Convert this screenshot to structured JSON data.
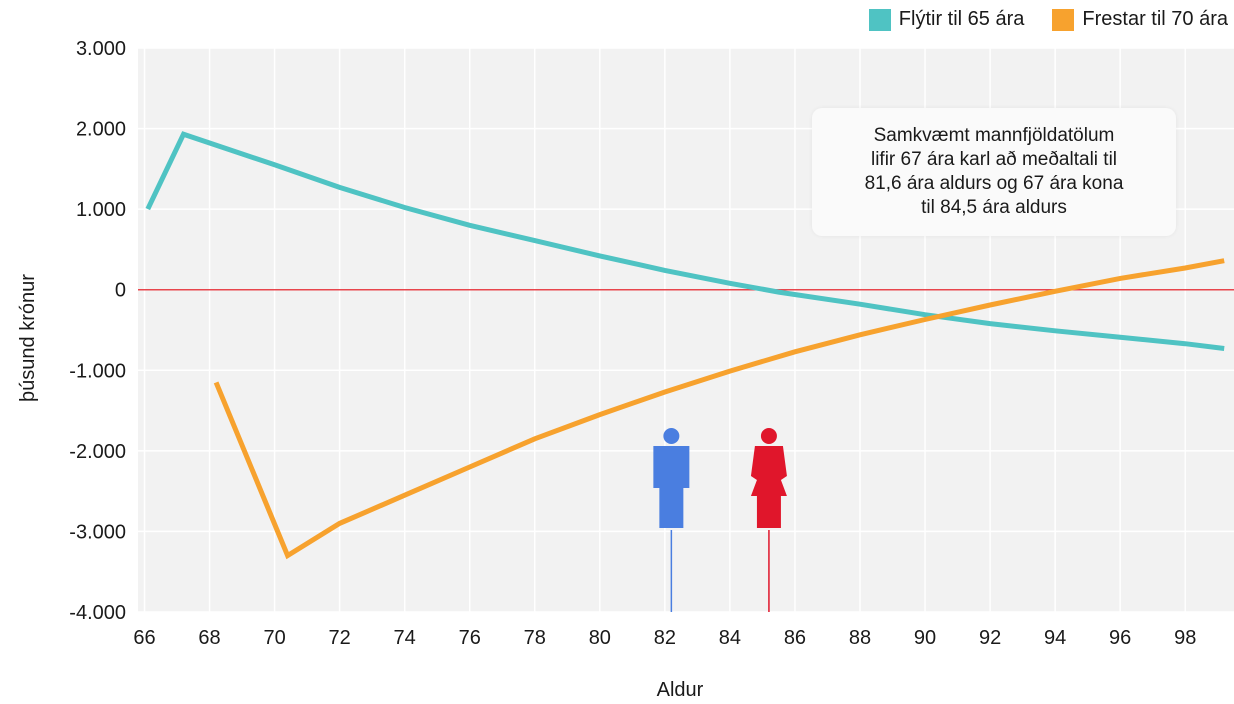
{
  "chart_data": {
    "type": "line",
    "xlabel": "Aldur",
    "ylabel": "þúsund krónur",
    "xlim": [
      65.8,
      99.5
    ],
    "ylim": [
      -4000,
      3000
    ],
    "x_ticks": [
      66,
      68,
      70,
      72,
      74,
      76,
      78,
      80,
      82,
      84,
      86,
      88,
      90,
      92,
      94,
      96,
      98
    ],
    "y_ticks": [
      3000,
      2000,
      1000,
      0,
      -1000,
      -2000,
      -3000,
      -4000
    ],
    "y_tick_labels": [
      "3.000",
      "2.000",
      "1.000",
      "0",
      "-1.000",
      "-2.000",
      "-3.000",
      "-4.000"
    ],
    "grid": true,
    "legend_position": "top-right",
    "series": [
      {
        "name": "Flýtir til 65 ára",
        "color": "#4fc3c3",
        "points": [
          [
            66.1,
            1000
          ],
          [
            67.2,
            1930
          ],
          [
            70,
            1550
          ],
          [
            72,
            1270
          ],
          [
            74,
            1020
          ],
          [
            76,
            800
          ],
          [
            78,
            610
          ],
          [
            80,
            420
          ],
          [
            82,
            240
          ],
          [
            84,
            80
          ],
          [
            85.5,
            -30
          ],
          [
            88,
            -180
          ],
          [
            90,
            -310
          ],
          [
            92,
            -420
          ],
          [
            94,
            -510
          ],
          [
            96,
            -590
          ],
          [
            98,
            -670
          ],
          [
            99.2,
            -730
          ]
        ]
      },
      {
        "name": "Frestar til 70 ára",
        "color": "#f7a22e",
        "points": [
          [
            68.2,
            -1150
          ],
          [
            70.4,
            -3300
          ],
          [
            72,
            -2900
          ],
          [
            74,
            -2550
          ],
          [
            76,
            -2200
          ],
          [
            78,
            -1850
          ],
          [
            80,
            -1550
          ],
          [
            82,
            -1270
          ],
          [
            84,
            -1010
          ],
          [
            86,
            -770
          ],
          [
            88,
            -560
          ],
          [
            90,
            -370
          ],
          [
            92,
            -190
          ],
          [
            94,
            -20
          ],
          [
            96,
            140
          ],
          [
            98,
            270
          ],
          [
            99.2,
            360
          ]
        ]
      }
    ],
    "reference_line": {
      "y": 0,
      "color": "#e8454c"
    },
    "markers": [
      {
        "label": "karl",
        "x": 82.2,
        "color": "#4a7ee0"
      },
      {
        "label": "kona",
        "x": 85.2,
        "color": "#e0162b"
      }
    ],
    "annotation": "Samkvæmt mannfjöldatölum lifir 67 ára karl að meðaltali til 81,6 ára aldurs og 67 ára kona til 84,5 ára aldurs",
    "annotation_lines": [
      "Samkvæmt mannfjöldatölum",
      "lifir 67 ára karl að meðaltali til",
      "81,6 ára aldurs og 67 ára kona",
      "til 84,5 ára aldurs"
    ]
  }
}
